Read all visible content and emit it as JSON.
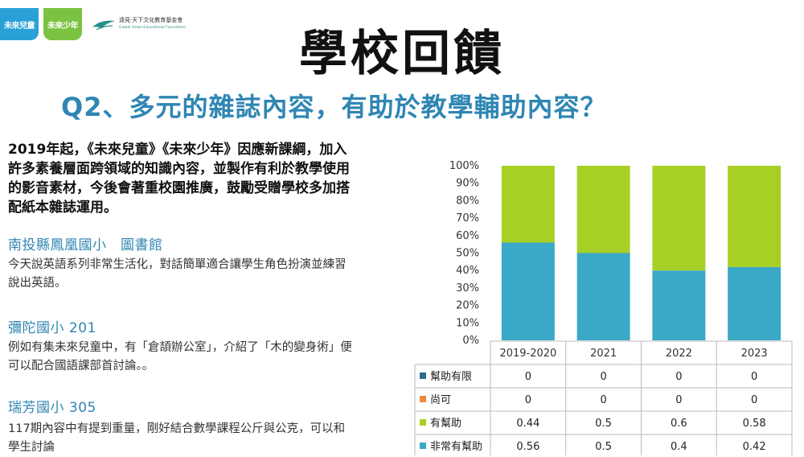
{
  "logos": {
    "logo1": "未來兒童",
    "logo2": "未來少年",
    "foundation_zh": "遠見‧天下文化教育基金會",
    "foundation_en": "Global Views Educational Foundation"
  },
  "title": "學校回饋",
  "subtitle": "Q2、多元的雜誌內容，有助於教學輔助內容？",
  "intro": "2019年起，《未來兒童》《未來少年》因應新課綱，加入許多素養層面跨領域的知識內容，並製作有利於教學使用的影音素材，今後會著重校園推廣，鼓勵受贈學校多加搭配紙本雜誌運用。",
  "schools": [
    {
      "name": "南投縣鳳凰國小　圖書館",
      "text": "今天說英語系列非常生活化，對話簡單適合讓學生角色扮演並練習說出英語。"
    },
    {
      "name": "彌陀國小 201",
      "text": "例如有集未來兒童中，有「倉頡辦公室」，介紹了「木的變身術」便可以配合國語課部首討論。。"
    },
    {
      "name": "瑞芳國小 305",
      "text": "117期內容中有提到重量，剛好結合數學課程公斤與公克，可以和學生討論"
    }
  ],
  "colors": {
    "title_blue": "#2f86b3",
    "s1": "#2f6b8f",
    "s2": "#f0883a",
    "s3": "#a8cf26",
    "s4": "#3aa9c8"
  },
  "chart_data": {
    "type": "bar",
    "stacked": true,
    "percent": true,
    "categories": [
      "2019-2020",
      "2021",
      "2022",
      "2023"
    ],
    "series": [
      {
        "name": "幫助有限",
        "values": [
          0,
          0,
          0,
          0
        ]
      },
      {
        "name": "尚可",
        "values": [
          0,
          0,
          0,
          0
        ]
      },
      {
        "name": "有幫助",
        "values": [
          0.44,
          0.5,
          0.6,
          0.58
        ]
      },
      {
        "name": "非常有幫助",
        "values": [
          0.56,
          0.5,
          0.4,
          0.42
        ]
      }
    ],
    "ylim": [
      0,
      1
    ],
    "yticks": [
      "0%",
      "10%",
      "20%",
      "30%",
      "40%",
      "50%",
      "60%",
      "70%",
      "80%",
      "90%",
      "100%"
    ],
    "data_table": true
  }
}
